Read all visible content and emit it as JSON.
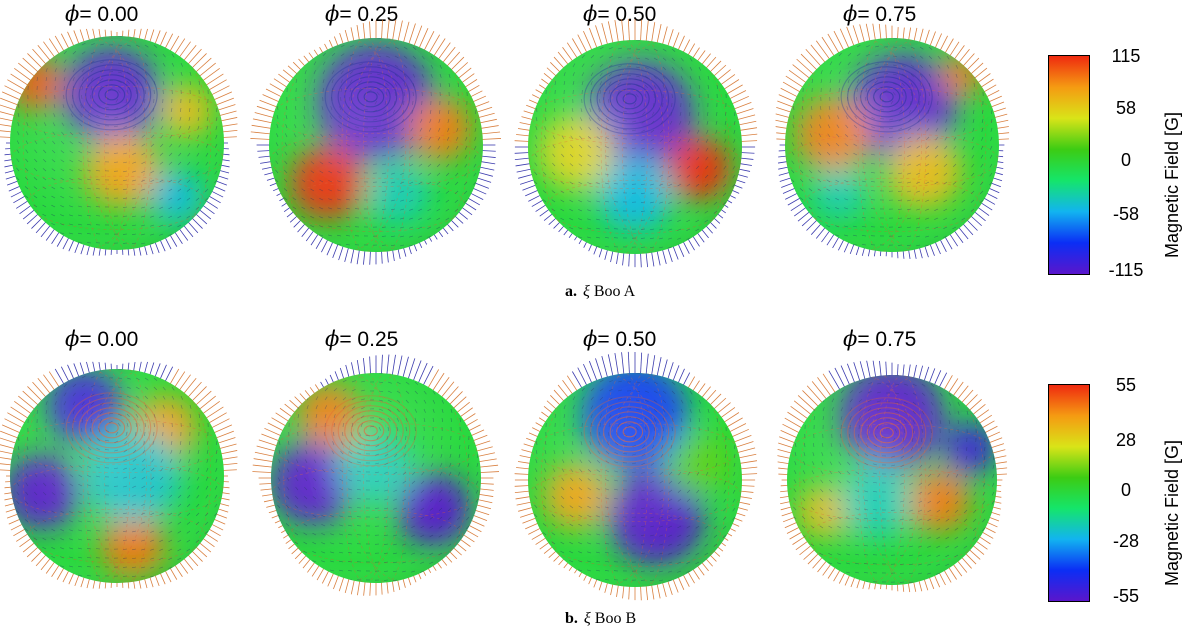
{
  "colors": {
    "colormap": [
      "#5a16cc",
      "#0b2ef5",
      "#12b4f0",
      "#15e56a",
      "#3ccc14",
      "#d9e418",
      "#f59b12",
      "#ef2a10"
    ],
    "hair_positive": "#d2691e",
    "hair_negative": "#1a1aa0",
    "grid_lines": "#e05a30"
  },
  "phase_symbol": "ϕ",
  "panels": [
    {
      "id": "a",
      "label": "a.",
      "star_symbol": "ξ",
      "star_name": "Boo A",
      "phases": [
        "= 0.00",
        "= 0.25",
        "= 0.50",
        "= 0.75"
      ],
      "colorbar": {
        "title": "Magnetic Field [G]",
        "ticks": [
          "115",
          "58",
          "0",
          "-58",
          "-115"
        ]
      },
      "spheres": [
        {
          "phase": 0.0,
          "pole": "negative",
          "spots": [
            {
              "u": -0.05,
              "v": -0.45,
              "r": 0.45,
              "val": -1.0
            },
            {
              "u": 0.05,
              "v": 0.25,
              "r": 0.35,
              "val": 0.7
            },
            {
              "u": 0.65,
              "v": -0.3,
              "r": 0.25,
              "val": 0.6
            },
            {
              "u": -0.75,
              "v": -0.55,
              "r": 0.25,
              "val": 0.9
            },
            {
              "u": 0.55,
              "v": 0.5,
              "r": 0.25,
              "val": -0.4
            }
          ]
        },
        {
          "phase": 0.25,
          "pole": "negative",
          "spots": [
            {
              "u": 0.0,
              "v": -0.4,
              "r": 0.55,
              "val": -1.0
            },
            {
              "u": -0.45,
              "v": 0.35,
              "r": 0.35,
              "val": 1.0
            },
            {
              "u": 0.6,
              "v": -0.15,
              "r": 0.3,
              "val": 0.8
            },
            {
              "u": 0.2,
              "v": 0.45,
              "r": 0.3,
              "val": -0.3
            }
          ]
        },
        {
          "phase": 0.5,
          "pole": "negative",
          "spots": [
            {
              "u": 0.05,
              "v": -0.3,
              "r": 0.5,
              "val": -1.0
            },
            {
              "u": 0.6,
              "v": 0.2,
              "r": 0.3,
              "val": 1.0
            },
            {
              "u": -0.55,
              "v": 0.05,
              "r": 0.35,
              "val": 0.5
            },
            {
              "u": 0.0,
              "v": 0.45,
              "r": 0.35,
              "val": -0.4
            }
          ]
        },
        {
          "phase": 0.75,
          "pole": "negative",
          "spots": [
            {
              "u": 0.1,
              "v": -0.35,
              "r": 0.5,
              "val": -1.0
            },
            {
              "u": -0.55,
              "v": -0.1,
              "r": 0.35,
              "val": 0.8
            },
            {
              "u": 0.3,
              "v": 0.25,
              "r": 0.35,
              "val": 0.6
            },
            {
              "u": -0.5,
              "v": 0.45,
              "r": 0.25,
              "val": -0.3
            },
            {
              "u": 0.65,
              "v": -0.65,
              "r": 0.2,
              "val": 0.8
            }
          ]
        }
      ]
    },
    {
      "id": "b",
      "label": "b.",
      "star_symbol": "ξ",
      "star_name": "Boo B",
      "phases": [
        "= 0.00",
        "= 0.25",
        "= 0.50",
        "= 0.75"
      ],
      "colorbar": {
        "title": "Magnetic Field [G]",
        "ticks": [
          "55",
          "28",
          "0",
          "-28",
          "-55"
        ]
      },
      "spheres": [
        {
          "phase": 0.0,
          "pole": "positive",
          "spots": [
            {
              "u": -0.3,
              "v": -0.65,
              "r": 0.35,
              "val": -0.9
            },
            {
              "u": -0.7,
              "v": 0.15,
              "r": 0.35,
              "val": -1.0
            },
            {
              "u": 0.45,
              "v": -0.45,
              "r": 0.3,
              "val": 0.7
            },
            {
              "u": 0.15,
              "v": 0.65,
              "r": 0.3,
              "val": 0.8
            },
            {
              "u": 0.15,
              "v": 0.0,
              "r": 0.45,
              "val": -0.35
            }
          ]
        },
        {
          "phase": 0.25,
          "pole": "positive",
          "spots": [
            {
              "u": -0.6,
              "v": 0.05,
              "r": 0.4,
              "val": -1.0
            },
            {
              "u": 0.55,
              "v": 0.3,
              "r": 0.35,
              "val": -1.0
            },
            {
              "u": -0.45,
              "v": -0.6,
              "r": 0.3,
              "val": 0.8
            },
            {
              "u": 0.0,
              "v": -0.1,
              "r": 0.35,
              "val": -0.3
            }
          ]
        },
        {
          "phase": 0.5,
          "pole": "positive",
          "spots": [
            {
              "u": 0.2,
              "v": 0.35,
              "r": 0.45,
              "val": -1.0
            },
            {
              "u": -0.55,
              "v": 0.15,
              "r": 0.3,
              "val": 0.7
            },
            {
              "u": 0.0,
              "v": -0.6,
              "r": 0.5,
              "val": -0.7
            },
            {
              "u": 0.6,
              "v": -0.15,
              "r": 0.3,
              "val": 0.2
            }
          ]
        },
        {
          "phase": 0.75,
          "pole": "positive",
          "spots": [
            {
              "u": 0.0,
              "v": -0.6,
              "r": 0.5,
              "val": -1.0
            },
            {
              "u": 0.45,
              "v": 0.2,
              "r": 0.3,
              "val": 0.8
            },
            {
              "u": -0.65,
              "v": 0.3,
              "r": 0.25,
              "val": 0.6
            },
            {
              "u": 0.75,
              "v": -0.3,
              "r": 0.25,
              "val": -0.9
            },
            {
              "u": -0.15,
              "v": 0.2,
              "r": 0.35,
              "val": -0.3
            }
          ]
        }
      ]
    }
  ]
}
